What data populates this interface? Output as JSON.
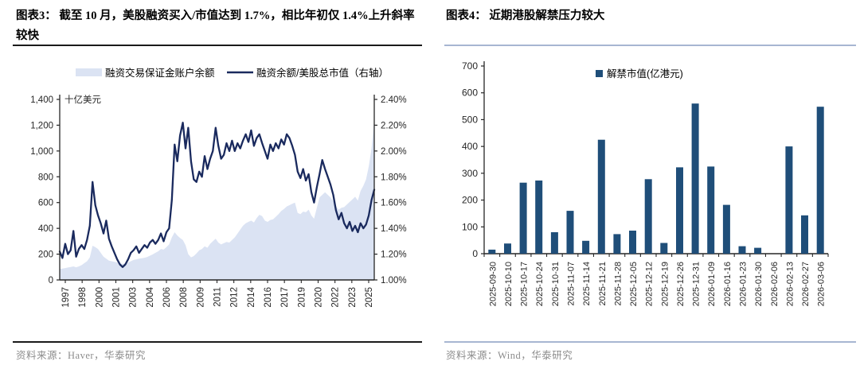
{
  "page": {
    "background": "#ffffff"
  },
  "left_panel": {
    "title": "图表3：  截至 10 月，美股融资买入/市值达到 1.7%，相比年初仅 1.4%上升斜率较快",
    "source": "资料来源：Haver，华泰研究"
  },
  "right_panel": {
    "title": "图表4：  近期港股解禁压力较大",
    "source": "资料来源：Wind，华泰研究"
  },
  "colors": {
    "area_fill": "#dbe3f3",
    "line": "#1a2a5e",
    "bar": "#1f4e79",
    "axis": "#262626",
    "tick_text": "#262626",
    "rule_dark": "#1a1a1a",
    "rule_light": "#a7b6d2"
  },
  "chart_data": [
    {
      "type": "line",
      "subtype": "area-line-combo",
      "title": "截至10月，美股融资买入/市值达到1.7%，相比年初仅1.4%上升斜率较快",
      "left_axis": {
        "min": 0,
        "max": 1400,
        "step": 200,
        "unit": "十亿美元"
      },
      "right_axis": {
        "min": 1.0,
        "max": 2.4,
        "step": 0.2,
        "format": "percent"
      },
      "x_tick_labels": [
        "1997",
        "1998",
        "2000",
        "2001",
        "2003",
        "2004",
        "2006",
        "2008",
        "2009",
        "2011",
        "2012",
        "2014",
        "2016",
        "2017",
        "2019",
        "2020",
        "2022",
        "2023",
        "2025"
      ],
      "x_range_years": [
        1997,
        2025.75
      ],
      "x_step_years": 0.25,
      "grid": false,
      "legend_position": "top",
      "series": [
        {
          "name": "融资交易保证金账户余额",
          "type": "area",
          "axis": "left",
          "color": "#dbe3f3",
          "values": [
            85,
            88,
            92,
            96,
            100,
            105,
            98,
            105,
            115,
            130,
            145,
            175,
            265,
            255,
            240,
            210,
            180,
            165,
            150,
            145,
            140,
            135,
            128,
            125,
            128,
            135,
            145,
            155,
            160,
            165,
            168,
            172,
            178,
            188,
            198,
            210,
            222,
            240,
            235,
            255,
            275,
            330,
            370,
            345,
            325,
            310,
            270,
            200,
            175,
            185,
            205,
            230,
            240,
            260,
            250,
            280,
            300,
            320,
            290,
            275,
            285,
            295,
            290,
            310,
            330,
            360,
            390,
            420,
            440,
            450,
            460,
            445,
            480,
            505,
            495,
            460,
            450,
            465,
            470,
            490,
            510,
            535,
            550,
            570,
            580,
            590,
            600,
            520,
            510,
            530,
            525,
            545,
            500,
            475,
            560,
            640,
            660,
            680,
            660,
            640,
            610,
            570,
            545,
            560,
            565,
            585,
            605,
            625,
            645,
            615,
            690,
            730,
            780,
            880,
            1020,
            1250
          ]
        },
        {
          "name": "融资余额/美股总市值（右轴）",
          "type": "line",
          "axis": "right",
          "color": "#1a2a5e",
          "values": [
            1.22,
            1.17,
            1.28,
            1.2,
            1.23,
            1.38,
            1.18,
            1.24,
            1.27,
            1.24,
            1.31,
            1.42,
            1.76,
            1.58,
            1.5,
            1.44,
            1.36,
            1.46,
            1.32,
            1.26,
            1.21,
            1.16,
            1.12,
            1.1,
            1.12,
            1.16,
            1.21,
            1.23,
            1.26,
            1.21,
            1.24,
            1.27,
            1.25,
            1.29,
            1.31,
            1.28,
            1.31,
            1.36,
            1.3,
            1.37,
            1.4,
            1.62,
            2.05,
            1.92,
            2.12,
            2.22,
            2.02,
            2.18,
            1.92,
            1.78,
            1.76,
            1.84,
            1.8,
            1.96,
            1.86,
            1.94,
            2.0,
            2.18,
            2.04,
            1.94,
            1.97,
            2.06,
            2.0,
            2.08,
            2.0,
            2.06,
            2.02,
            2.08,
            2.13,
            2.07,
            2.16,
            2.04,
            2.1,
            2.13,
            2.06,
            2.0,
            1.94,
            2.05,
            2.0,
            2.06,
            2.02,
            2.09,
            2.05,
            2.13,
            2.1,
            2.04,
            1.97,
            1.84,
            1.79,
            1.86,
            1.77,
            1.82,
            1.68,
            1.6,
            1.72,
            1.82,
            1.93,
            1.86,
            1.8,
            1.74,
            1.66,
            1.54,
            1.47,
            1.52,
            1.44,
            1.4,
            1.45,
            1.38,
            1.42,
            1.37,
            1.44,
            1.4,
            1.43,
            1.5,
            1.62,
            1.7
          ]
        }
      ]
    },
    {
      "type": "bar",
      "title": "近期港股解禁压力较大",
      "legend": "解禁市值(亿港元)",
      "categories": [
        "2025-09-30",
        "2025-10-10",
        "2025-10-17",
        "2025-10-24",
        "2025-10-31",
        "2025-11-07",
        "2025-11-14",
        "2025-11-21",
        "2025-11-28",
        "2025-12-05",
        "2025-12-12",
        "2025-12-19",
        "2025-12-26",
        "2025-12-31",
        "2026-01-09",
        "2026-01-16",
        "2026-01-23",
        "2026-01-30",
        "2026-02-06",
        "2026-02-13",
        "2026-02-27",
        "2026-03-06"
      ],
      "values": [
        15,
        38,
        265,
        273,
        80,
        160,
        48,
        425,
        73,
        86,
        278,
        40,
        322,
        560,
        325,
        182,
        28,
        22,
        0,
        400,
        143,
        548
      ],
      "ylabel": "",
      "ylim": [
        0,
        700
      ],
      "ytick_step": 100,
      "grid": false,
      "legend_position": "top",
      "bar_color": "#1f4e79"
    }
  ]
}
